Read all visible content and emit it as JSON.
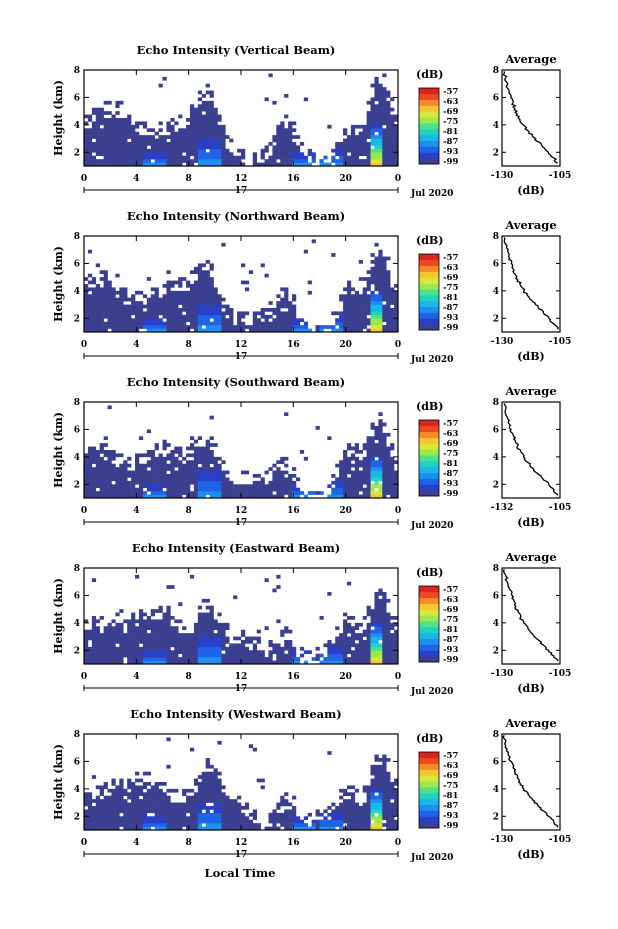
{
  "x_axis_label": "Local Time",
  "date_label": "Jul 2020",
  "day_label": "17",
  "x_ticks": [
    "0",
    "4",
    "8",
    "12",
    "16",
    "20",
    "0"
  ],
  "y_label": "Height (km)",
  "y_ticks": [
    "2",
    "4",
    "6",
    "8"
  ],
  "colorbar_unit": "(dB)",
  "colorbar_ticks": [
    "-57",
    "-63",
    "-69",
    "-75",
    "-81",
    "-87",
    "-93",
    "-99"
  ],
  "colorbar_colors": [
    "#3b3f8f",
    "#2a3fc8",
    "#1f63e8",
    "#1c8fef",
    "#19b8e8",
    "#1fd3c0",
    "#4fe08c",
    "#9be84f",
    "#d8e83a",
    "#f7c52e",
    "#f88a27",
    "#ee4a22",
    "#d9261f"
  ],
  "avg_title": "Average",
  "avg_xlabel": "(dB)",
  "chart_data": [
    {
      "type": "heatmap",
      "title": "Echo Intensity (Vertical Beam)",
      "xlabel": "Local Time",
      "ylabel": "Height (km)",
      "xlim": [
        0,
        24
      ],
      "ylim": [
        1,
        8
      ],
      "clim": [
        -99,
        -57
      ],
      "avg_profile": {
        "xticks": [
          "-130",
          "-105"
        ],
        "xlim": [
          -130,
          -105
        ],
        "x": [
          -129,
          -128.5,
          -127.8,
          -127,
          -126.2,
          -125.3,
          -124.5,
          -123.5,
          -122.3,
          -120.8,
          -119,
          -117,
          -114.8,
          -112.5,
          -110,
          -107.8,
          -106
        ],
        "y": [
          7.9,
          7.4,
          6.9,
          6.4,
          6.0,
          5.6,
          5.2,
          4.8,
          4.4,
          4.0,
          3.6,
          3.2,
          2.8,
          2.4,
          2.0,
          1.6,
          1.2
        ]
      }
    },
    {
      "type": "heatmap",
      "title": "Echo Intensity (Northward Beam)",
      "xlabel": "Local Time",
      "ylabel": "Height (km)",
      "xlim": [
        0,
        24
      ],
      "ylim": [
        1,
        8
      ],
      "clim": [
        -99,
        -57
      ],
      "avg_profile": {
        "xticks": [
          "-130",
          "-105"
        ],
        "xlim": [
          -130,
          -105
        ],
        "x": [
          -129,
          -128.4,
          -127.6,
          -126.8,
          -126,
          -125.2,
          -124.3,
          -123.2,
          -122,
          -120.5,
          -118.7,
          -116.7,
          -114.5,
          -112.2,
          -109.8,
          -107.7,
          -106
        ],
        "y": [
          7.9,
          7.4,
          6.9,
          6.4,
          6.0,
          5.6,
          5.2,
          4.8,
          4.4,
          4.0,
          3.6,
          3.2,
          2.8,
          2.4,
          2.0,
          1.6,
          1.2
        ]
      }
    },
    {
      "type": "heatmap",
      "title": "Echo Intensity (Southward Beam)",
      "xlabel": "Local Time",
      "ylabel": "Height (km)",
      "xlim": [
        0,
        24
      ],
      "ylim": [
        1,
        8
      ],
      "clim": [
        -99,
        -57
      ],
      "avg_profile": {
        "xticks": [
          "-132",
          "-105"
        ],
        "xlim": [
          -132,
          -105
        ],
        "x": [
          -131,
          -130.4,
          -129.6,
          -128.7,
          -127.8,
          -126.8,
          -125.8,
          -124.7,
          -123.4,
          -121.9,
          -120.1,
          -118,
          -115.6,
          -113,
          -110.3,
          -107.8,
          -106
        ],
        "y": [
          7.9,
          7.4,
          6.9,
          6.4,
          6.0,
          5.6,
          5.2,
          4.8,
          4.4,
          4.0,
          3.6,
          3.2,
          2.8,
          2.4,
          2.0,
          1.6,
          1.2
        ]
      }
    },
    {
      "type": "heatmap",
      "title": "Echo Intensity (Eastward Beam)",
      "xlabel": "Local Time",
      "ylabel": "Height (km)",
      "xlim": [
        0,
        24
      ],
      "ylim": [
        1,
        8
      ],
      "clim": [
        -99,
        -57
      ],
      "avg_profile": {
        "xticks": [
          "-130",
          "-105"
        ],
        "xlim": [
          -130,
          -105
        ],
        "x": [
          -129,
          -128.3,
          -127.5,
          -126.5,
          -125.6,
          -124.8,
          -124,
          -123.1,
          -122,
          -120.6,
          -118.9,
          -116.9,
          -114.7,
          -112.3,
          -109.9,
          -107.7,
          -106
        ],
        "y": [
          7.9,
          7.4,
          6.9,
          6.4,
          6.0,
          5.6,
          5.2,
          4.8,
          4.4,
          4.0,
          3.6,
          3.2,
          2.8,
          2.4,
          2.0,
          1.6,
          1.2
        ]
      }
    },
    {
      "type": "heatmap",
      "title": "Echo Intensity (Westward Beam)",
      "xlabel": "Local Time",
      "ylabel": "Height (km)",
      "xlim": [
        0,
        24
      ],
      "ylim": [
        1,
        8
      ],
      "clim": [
        -99,
        -57
      ],
      "avg_profile": {
        "xticks": [
          "-130",
          "-105"
        ],
        "xlim": [
          -130,
          -105
        ],
        "x": [
          -129,
          -128.5,
          -127.8,
          -127,
          -126.1,
          -125.2,
          -124.3,
          -123.3,
          -122.1,
          -120.6,
          -118.8,
          -116.8,
          -114.6,
          -112.3,
          -109.9,
          -107.7,
          -106
        ],
        "y": [
          7.9,
          7.4,
          6.9,
          6.4,
          6.0,
          5.6,
          5.2,
          4.8,
          4.4,
          4.0,
          3.6,
          3.2,
          2.8,
          2.4,
          2.0,
          1.6,
          1.2
        ]
      }
    }
  ]
}
